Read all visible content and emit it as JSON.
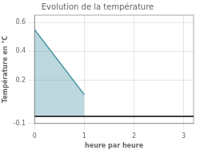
{
  "chart_data": {
    "type": "area",
    "title": "Evolution de la température",
    "xlabel": "heure par heure",
    "ylabel": "Température en °C",
    "x": [
      0,
      1
    ],
    "values": [
      0.55,
      0.1
    ],
    "baseline": -0.05,
    "color": "#4090a0",
    "xlim": [
      0,
      3.2
    ],
    "ylim": [
      -0.1,
      0.65
    ],
    "xticks": [
      0,
      1,
      2,
      3
    ],
    "yticks": [
      -0.1,
      0.2,
      0.4,
      0.6
    ],
    "grid": true
  }
}
